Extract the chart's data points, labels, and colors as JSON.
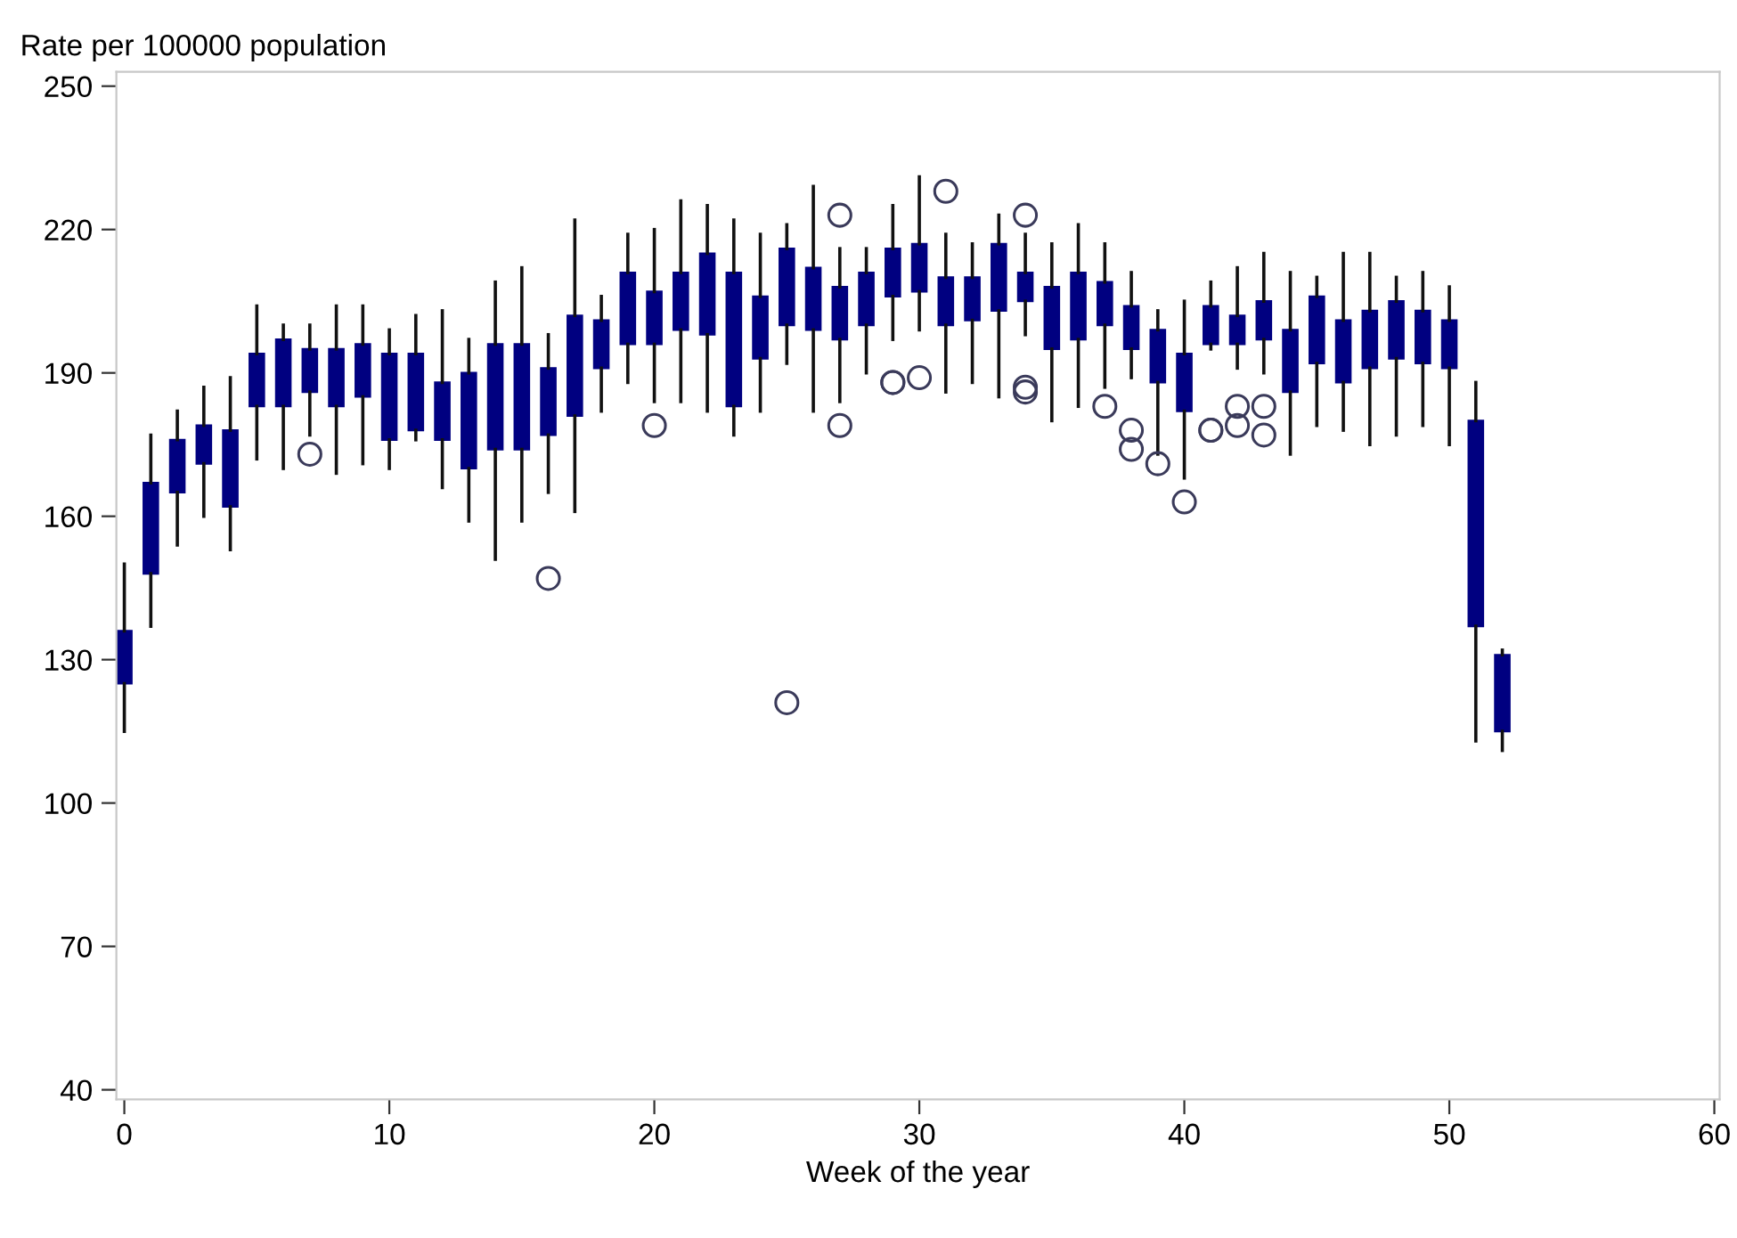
{
  "chart_data": {
    "type": "box",
    "ylabel": "Rate per 100000 population",
    "xlabel": "Week of the year",
    "x": [
      0,
      1,
      2,
      3,
      4,
      5,
      6,
      7,
      8,
      9,
      10,
      11,
      12,
      13,
      14,
      15,
      16,
      17,
      18,
      19,
      20,
      21,
      22,
      23,
      24,
      25,
      26,
      27,
      28,
      29,
      30,
      31,
      32,
      33,
      34,
      35,
      36,
      37,
      38,
      39,
      40,
      41,
      42,
      43,
      44,
      45,
      46,
      47,
      48,
      49,
      50,
      51,
      52
    ],
    "xlim": [
      -0.3,
      60.2
    ],
    "xticks": [
      0,
      10,
      20,
      30,
      40,
      50,
      60
    ],
    "ylim": [
      38,
      253
    ],
    "yticks": [
      40,
      70,
      100,
      130,
      160,
      190,
      220,
      250
    ],
    "grid": false,
    "legend": false,
    "series": [
      {
        "color": "#000080",
        "boxes": [
          {
            "low": 115,
            "q1": 125,
            "median": 131,
            "q3": 136,
            "high": 150
          },
          {
            "low": 137,
            "q1": 148,
            "median": 158,
            "q3": 167,
            "high": 177
          },
          {
            "low": 154,
            "q1": 165,
            "median": 170,
            "q3": 176,
            "high": 182
          },
          {
            "low": 160,
            "q1": 171,
            "median": 175,
            "q3": 179,
            "high": 187
          },
          {
            "low": 153,
            "q1": 162,
            "median": 170,
            "q3": 178,
            "high": 189
          },
          {
            "low": 172,
            "q1": 183,
            "median": 189,
            "q3": 194,
            "high": 204
          },
          {
            "low": 170,
            "q1": 183,
            "median": 190,
            "q3": 197,
            "high": 200
          },
          {
            "low": 177,
            "q1": 186,
            "median": 190,
            "q3": 195,
            "high": 200,
            "outliers": [
              173
            ]
          },
          {
            "low": 169,
            "q1": 183,
            "median": 189,
            "q3": 195,
            "high": 204
          },
          {
            "low": 171,
            "q1": 185,
            "median": 190,
            "q3": 196,
            "high": 204
          },
          {
            "low": 170,
            "q1": 176,
            "median": 185,
            "q3": 194,
            "high": 199
          },
          {
            "low": 176,
            "q1": 178,
            "median": 186,
            "q3": 194,
            "high": 202
          },
          {
            "low": 166,
            "q1": 176,
            "median": 182,
            "q3": 188,
            "high": 203
          },
          {
            "low": 159,
            "q1": 170,
            "median": 180,
            "q3": 190,
            "high": 197
          },
          {
            "low": 151,
            "q1": 174,
            "median": 185,
            "q3": 196,
            "high": 209
          },
          {
            "low": 159,
            "q1": 174,
            "median": 185,
            "q3": 196,
            "high": 212
          },
          {
            "low": 165,
            "q1": 177,
            "median": 184,
            "q3": 191,
            "high": 198,
            "outliers": [
              147
            ]
          },
          {
            "low": 161,
            "q1": 181,
            "median": 192,
            "q3": 202,
            "high": 222
          },
          {
            "low": 182,
            "q1": 191,
            "median": 196,
            "q3": 201,
            "high": 206
          },
          {
            "low": 188,
            "q1": 196,
            "median": 204,
            "q3": 211,
            "high": 219
          },
          {
            "low": 184,
            "q1": 196,
            "median": 202,
            "q3": 207,
            "high": 220,
            "outliers": [
              179
            ]
          },
          {
            "low": 184,
            "q1": 199,
            "median": 205,
            "q3": 211,
            "high": 226
          },
          {
            "low": 182,
            "q1": 198,
            "median": 206,
            "q3": 215,
            "high": 225
          },
          {
            "low": 177,
            "q1": 183,
            "median": 197,
            "q3": 211,
            "high": 222
          },
          {
            "low": 182,
            "q1": 193,
            "median": 199,
            "q3": 206,
            "high": 219
          },
          {
            "low": 192,
            "q1": 200,
            "median": 208,
            "q3": 216,
            "high": 221,
            "outliers": [
              121
            ]
          },
          {
            "low": 182,
            "q1": 199,
            "median": 206,
            "q3": 212,
            "high": 229
          },
          {
            "low": 184,
            "q1": 197,
            "median": 202,
            "q3": 208,
            "high": 216,
            "outliers": [
              223,
              179
            ]
          },
          {
            "low": 190,
            "q1": 200,
            "median": 206,
            "q3": 211,
            "high": 216
          },
          {
            "low": 197,
            "q1": 206,
            "median": 211,
            "q3": 216,
            "high": 225,
            "outliers": [
              188,
              188
            ]
          },
          {
            "low": 199,
            "q1": 207,
            "median": 212,
            "q3": 217,
            "high": 231,
            "outliers": [
              189
            ]
          },
          {
            "low": 186,
            "q1": 200,
            "median": 205,
            "q3": 210,
            "high": 219,
            "outliers": [
              228
            ]
          },
          {
            "low": 188,
            "q1": 201,
            "median": 205,
            "q3": 210,
            "high": 217
          },
          {
            "low": 185,
            "q1": 203,
            "median": 210,
            "q3": 217,
            "high": 223
          },
          {
            "low": 198,
            "q1": 205,
            "median": 208,
            "q3": 211,
            "high": 219,
            "outliers": [
              223,
              187,
              186
            ]
          },
          {
            "low": 180,
            "q1": 195,
            "median": 201,
            "q3": 208,
            "high": 217
          },
          {
            "low": 183,
            "q1": 197,
            "median": 204,
            "q3": 211,
            "high": 221
          },
          {
            "low": 187,
            "q1": 200,
            "median": 205,
            "q3": 209,
            "high": 217,
            "outliers": [
              183
            ]
          },
          {
            "low": 189,
            "q1": 195,
            "median": 200,
            "q3": 204,
            "high": 211,
            "outliers": [
              178,
              174
            ]
          },
          {
            "low": 173,
            "q1": 188,
            "median": 193,
            "q3": 199,
            "high": 203,
            "outliers": [
              171
            ]
          },
          {
            "low": 168,
            "q1": 182,
            "median": 188,
            "q3": 194,
            "high": 205,
            "outliers": [
              163
            ]
          },
          {
            "low": 195,
            "q1": 196,
            "median": 200,
            "q3": 204,
            "high": 209,
            "outliers": [
              178,
              178
            ]
          },
          {
            "low": 191,
            "q1": 196,
            "median": 199,
            "q3": 202,
            "high": 212,
            "outliers": [
              183,
              179
            ]
          },
          {
            "low": 190,
            "q1": 197,
            "median": 201,
            "q3": 205,
            "high": 215,
            "outliers": [
              183,
              177
            ]
          },
          {
            "low": 173,
            "q1": 186,
            "median": 192,
            "q3": 199,
            "high": 211
          },
          {
            "low": 179,
            "q1": 192,
            "median": 199,
            "q3": 206,
            "high": 210
          },
          {
            "low": 178,
            "q1": 188,
            "median": 195,
            "q3": 201,
            "high": 215
          },
          {
            "low": 175,
            "q1": 191,
            "median": 197,
            "q3": 203,
            "high": 215
          },
          {
            "low": 177,
            "q1": 193,
            "median": 199,
            "q3": 205,
            "high": 210
          },
          {
            "low": 179,
            "q1": 192,
            "median": 198,
            "q3": 203,
            "high": 211
          },
          {
            "low": 175,
            "q1": 191,
            "median": 196,
            "q3": 201,
            "high": 208
          },
          {
            "low": 113,
            "q1": 137,
            "median": 158,
            "q3": 180,
            "high": 188
          },
          {
            "low": 111,
            "q1": 115,
            "median": 123,
            "q3": 131,
            "high": 132
          }
        ]
      }
    ]
  }
}
